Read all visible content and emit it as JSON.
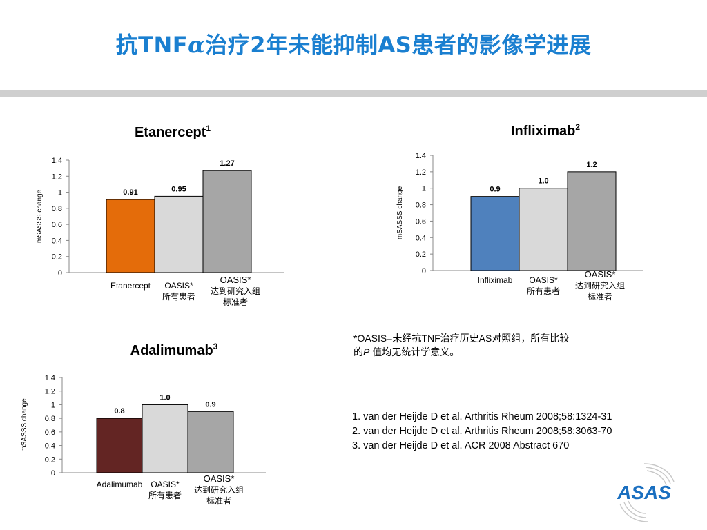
{
  "slide": {
    "title_prefix": "抗TNF",
    "title_alpha": "α",
    "title_suffix": "治疗2年未能抑制AS患者的影像学进展"
  },
  "chart_data": [
    {
      "type": "bar",
      "title": "Etanercept",
      "title_sup": "1",
      "ylabel": "mSASSS  change",
      "ylim": [
        0,
        1.4
      ],
      "yticks": [
        "0",
        "0.2",
        "0.4",
        "0.6",
        "0.8",
        "1",
        "1.2",
        "1.4"
      ],
      "categories": [
        [
          "Etanercept"
        ],
        [
          "OASIS*",
          "所有患者"
        ],
        [
          "OASIS*",
          "达到研究入组",
          "标准者"
        ]
      ],
      "values": [
        0.91,
        0.95,
        1.27
      ],
      "value_labels": [
        "0.91",
        "0.95",
        "1.27"
      ],
      "colors": [
        "#e46c0a",
        "#d9d9d9",
        "#a6a6a6"
      ]
    },
    {
      "type": "bar",
      "title": "Infliximab",
      "title_sup": "2",
      "ylabel": "mSASSS change",
      "ylim": [
        0,
        1.4
      ],
      "yticks": [
        "0",
        "0.2",
        "0.4",
        "0.6",
        "0.8",
        "1",
        "1.2",
        "1.4"
      ],
      "categories": [
        [
          "Infliximab"
        ],
        [
          "OASIS*",
          "所有患者"
        ],
        [
          "OASIS*",
          "达到研究入组",
          "标准者"
        ]
      ],
      "values": [
        0.9,
        1.0,
        1.2
      ],
      "value_labels": [
        "0.9",
        "1.0",
        "1.2"
      ],
      "colors": [
        "#4f81bd",
        "#d9d9d9",
        "#a6a6a6"
      ]
    },
    {
      "type": "bar",
      "title": "Adalimumab",
      "title_sup": "3",
      "ylabel": "mSASSS change",
      "ylim": [
        0,
        1.4
      ],
      "yticks": [
        "0",
        "0.2",
        "0.4",
        "0.6",
        "0.8",
        "1",
        "1.2",
        "1.4"
      ],
      "categories": [
        [
          "Adalimumab"
        ],
        [
          "OASIS*",
          "所有患者"
        ],
        [
          "OASIS*",
          "达到研究入组",
          "标准者"
        ]
      ],
      "values": [
        0.8,
        1.0,
        0.9
      ],
      "value_labels": [
        "0.8",
        "1.0",
        "0.9"
      ],
      "colors": [
        "#632523",
        "#d9d9d9",
        "#a6a6a6"
      ]
    }
  ],
  "footnote": {
    "line1": "*OASIS=未经抗TNF治疗历史AS对照组，所有比较",
    "line2_prefix": "的",
    "line2_p": "P",
    "line2_suffix": " 值均无统计学意义。"
  },
  "references": [
    "1. van der Heijde D et al. Arthritis Rheum 2008;58:1324-31",
    "2. van der Heijde D et al. Arthritis Rheum 2008;58:3063-70",
    "3. van der Heijde D et al. ACR 2008 Abstract 670"
  ],
  "logo": {
    "text": "ASAS",
    "color": "#1a6fc0"
  }
}
